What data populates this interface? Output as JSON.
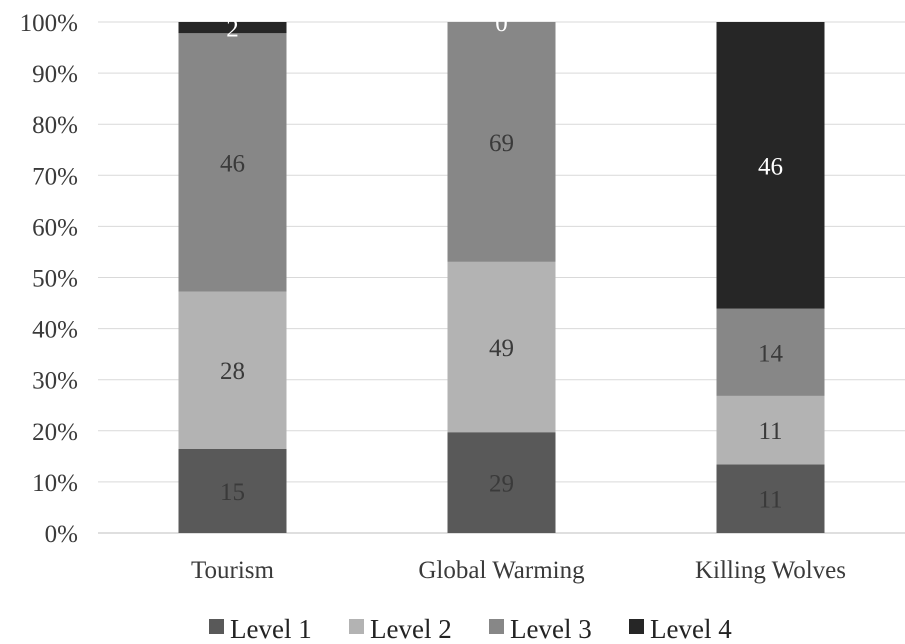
{
  "chart_data": {
    "type": "bar",
    "stacked": "percent",
    "categories": [
      "Tourism",
      "Global Warming",
      "Killing Wolves"
    ],
    "series": [
      {
        "name": "Level 1",
        "color": "#595959",
        "values": [
          15,
          29,
          11
        ]
      },
      {
        "name": "Level 2",
        "color": "#b3b3b3",
        "values": [
          28,
          49,
          11
        ]
      },
      {
        "name": "Level 3",
        "color": "#878787",
        "values": [
          46,
          69,
          14
        ]
      },
      {
        "name": "Level 4",
        "color": "#262626",
        "values": [
          2,
          0,
          46
        ]
      }
    ],
    "ylim": [
      0,
      100
    ],
    "yticks": [
      "0%",
      "10%",
      "20%",
      "30%",
      "40%",
      "50%",
      "60%",
      "70%",
      "80%",
      "90%",
      "100%"
    ],
    "grid": true,
    "legend": "bottom"
  }
}
